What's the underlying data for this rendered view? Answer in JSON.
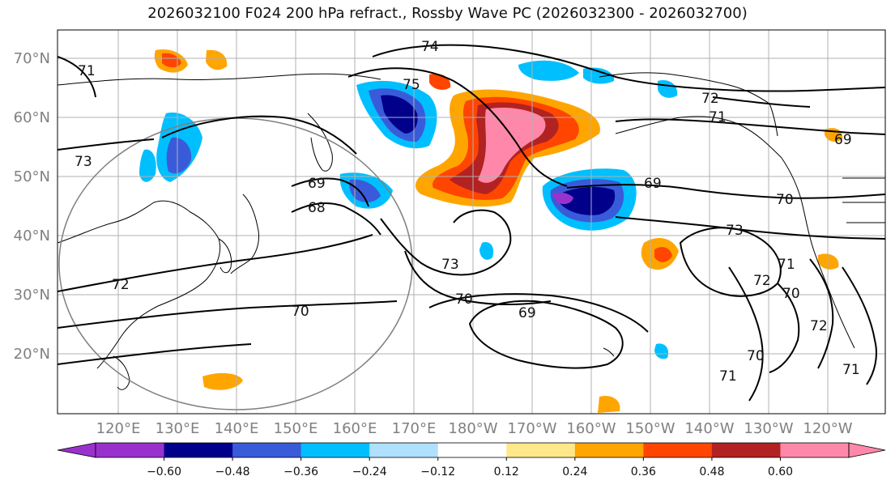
{
  "title": "2026032100 F024 200 hPa refract., Rossby Wave PC (2026032300 - 2026032700)",
  "lat_labels": [
    "70°N",
    "60°N",
    "50°N",
    "40°N",
    "30°N",
    "20°N"
  ],
  "lon_labels": [
    "120°E",
    "130°E",
    "140°E",
    "150°E",
    "160°E",
    "170°E",
    "180°W",
    "170°W",
    "160°W",
    "150°W",
    "140°W",
    "130°W",
    "120°W"
  ],
  "colorbar": {
    "ticks": [
      "−0.60",
      "−0.48",
      "−0.36",
      "−0.24",
      "−0.12",
      "0.12",
      "0.24",
      "0.36",
      "0.48",
      "0.60"
    ],
    "colors": [
      "#9932cc",
      "#00008b",
      "#3a5bd9",
      "#00bfff",
      "#b0e0ff",
      "#ffffff",
      "#ffe88a",
      "#ffa500",
      "#ff4500",
      "#b22222",
      "#ff88aa"
    ]
  },
  "contour_labels": [
    {
      "text": "74",
      "lon": "160E-ish"
    },
    {
      "text": "71"
    },
    {
      "text": "75"
    },
    {
      "text": "72"
    },
    {
      "text": "71"
    },
    {
      "text": "69"
    },
    {
      "text": "73"
    },
    {
      "text": "69"
    },
    {
      "text": "68"
    },
    {
      "text": "73"
    },
    {
      "text": "70"
    },
    {
      "text": "69"
    },
    {
      "text": "70"
    },
    {
      "text": "73"
    },
    {
      "text": "72"
    },
    {
      "text": "71"
    },
    {
      "text": "70"
    },
    {
      "text": "72"
    },
    {
      "text": "70"
    },
    {
      "text": "71"
    },
    {
      "text": "71"
    },
    {
      "text": "69"
    },
    {
      "text": "72"
    },
    {
      "text": "70"
    }
  ]
}
